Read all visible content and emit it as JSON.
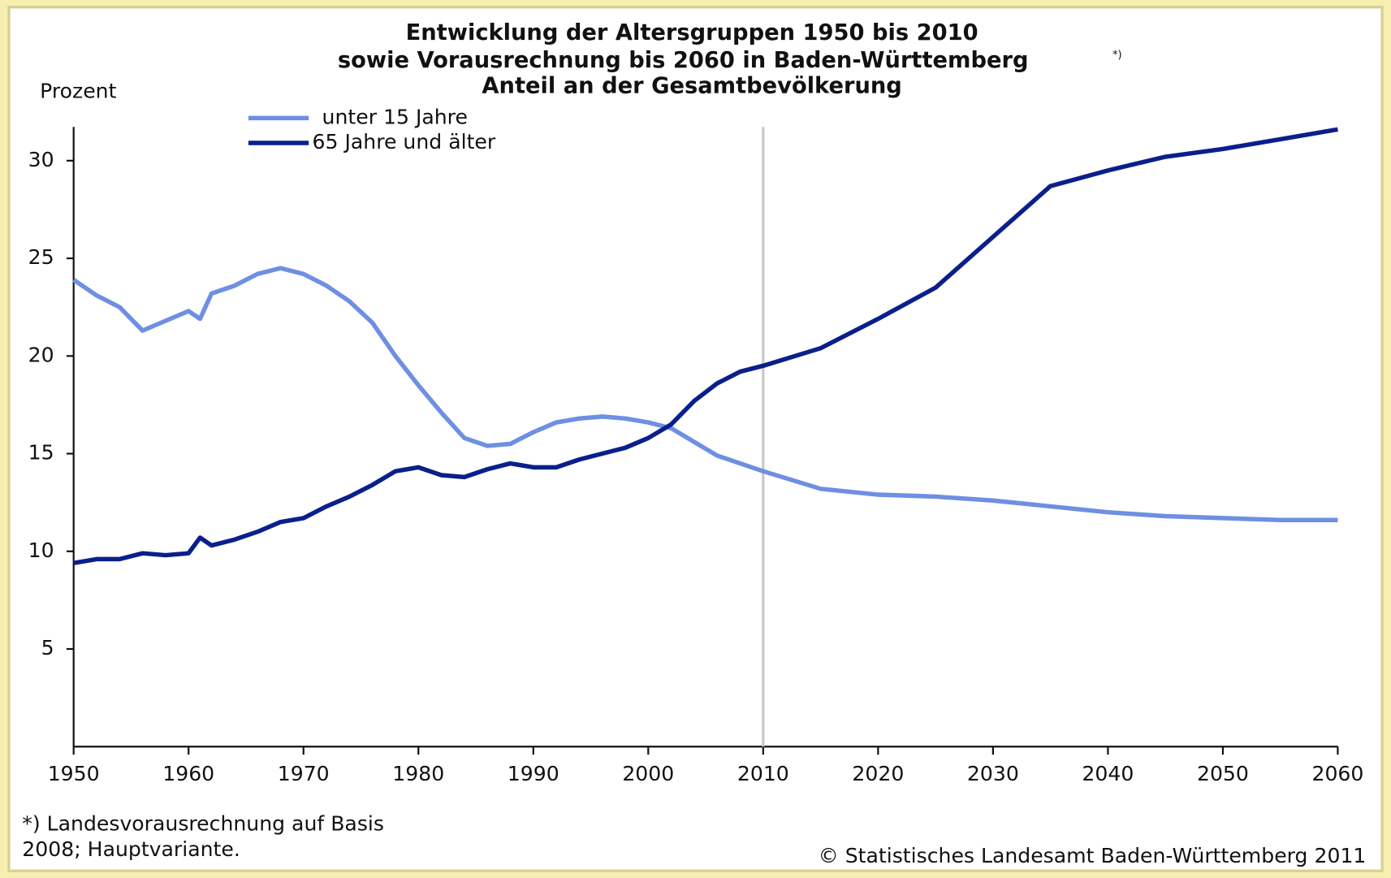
{
  "chart_data": {
    "type": "line",
    "title": [
      "Entwicklung der Altersgruppen 1950 bis 2010",
      "sowie Vorausrechnung bis 2060 in Baden-Württemberg",
      "Anteil an der Gesamtbevölkerung"
    ],
    "title_superscript": "*)",
    "y_label": "Prozent",
    "x": [
      1950,
      1952,
      1954,
      1956,
      1958,
      1960,
      1961,
      1962,
      1964,
      1966,
      1968,
      1970,
      1972,
      1974,
      1976,
      1978,
      1980,
      1982,
      1984,
      1986,
      1988,
      1990,
      1992,
      1994,
      1996,
      1998,
      2000,
      2002,
      2004,
      2006,
      2008,
      2010,
      2015,
      2020,
      2025,
      2030,
      2035,
      2040,
      2045,
      2050,
      2055,
      2060
    ],
    "series": [
      {
        "name": "unter 15 Jahre",
        "color": "#6e8fe2",
        "values": [
          23.9,
          23.1,
          22.5,
          21.3,
          21.8,
          22.3,
          21.9,
          23.2,
          23.6,
          24.2,
          24.5,
          24.2,
          23.6,
          22.8,
          21.7,
          20.0,
          18.5,
          17.1,
          15.8,
          15.4,
          15.5,
          16.1,
          16.6,
          16.8,
          16.9,
          16.8,
          16.6,
          16.3,
          15.6,
          14.9,
          14.5,
          14.1,
          13.2,
          12.9,
          12.8,
          12.6,
          12.3,
          12.0,
          11.8,
          11.7,
          11.6,
          11.6
        ]
      },
      {
        "name": "65 Jahre und älter",
        "color": "#0b1f8c",
        "values": [
          9.4,
          9.6,
          9.6,
          9.9,
          9.8,
          9.9,
          10.7,
          10.3,
          10.6,
          11.0,
          11.5,
          11.7,
          12.3,
          12.8,
          13.4,
          14.1,
          14.3,
          13.9,
          13.8,
          14.2,
          14.5,
          14.3,
          14.3,
          14.7,
          15.0,
          15.3,
          15.8,
          16.5,
          17.7,
          18.6,
          19.2,
          19.5,
          20.4,
          21.9,
          23.5,
          26.1,
          28.7,
          29.5,
          30.2,
          30.6,
          31.1,
          31.6
        ]
      }
    ],
    "xlim": [
      1950,
      2060
    ],
    "xticks": [
      1950,
      1960,
      1970,
      1980,
      1990,
      2000,
      2010,
      2020,
      2030,
      2040,
      2050,
      2060
    ],
    "ylim": [
      0,
      32
    ],
    "yticks": [
      5,
      10,
      15,
      20,
      25,
      30
    ],
    "vline": 2010,
    "legend": "upper left",
    "footnote": [
      "*) Landesvorausrechnung auf Basis",
      "2008; Hauptvariante."
    ],
    "source": "© Statistisches Landesamt Baden-Württemberg 2011"
  }
}
